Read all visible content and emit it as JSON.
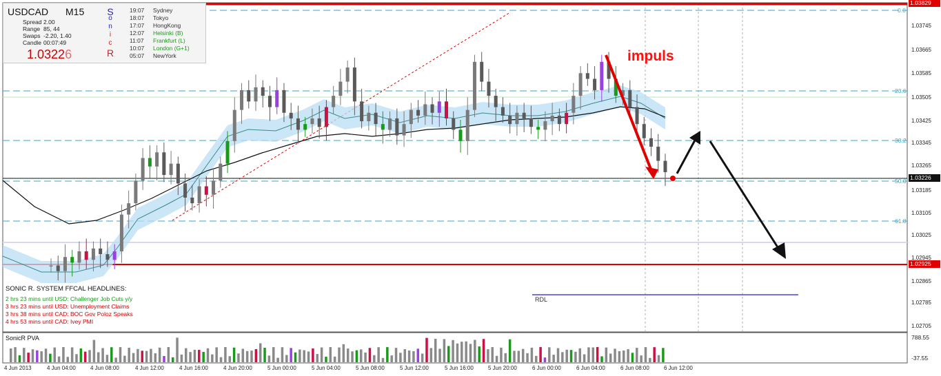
{
  "chart_window": {
    "symbol": "USDCAD",
    "timeframe": "M15",
    "sonicr_letters": [
      "S",
      "o",
      "n",
      "i",
      "c",
      "R"
    ],
    "stats": [
      {
        "label": "Spread",
        "value": "2.00"
      },
      {
        "label": "Range",
        "value": "85, 44"
      },
      {
        "label": "Swaps",
        "value": "-2.20, 1.40"
      },
      {
        "label": "Candle",
        "value": "00:07:49"
      }
    ],
    "price_main": "1.0322",
    "price_last_digit": "6",
    "sessions": [
      {
        "time": "19:07",
        "name": "Sydney",
        "color": "#333333"
      },
      {
        "time": "18:07",
        "name": "Tokyo",
        "color": "#333333"
      },
      {
        "time": "17:07",
        "name": "HongKong",
        "color": "#333333"
      },
      {
        "time": "12:07",
        "name": "Helsinki  (B)",
        "color": "#1a9a1a"
      },
      {
        "time": "11:07",
        "name": "Frankfurt  (L)",
        "color": "#1a9a1a"
      },
      {
        "time": "10:07",
        "name": "London  (G+1)",
        "color": "#1a9a1a"
      },
      {
        "time": "05:07",
        "name": "NewYork",
        "color": "#333333"
      }
    ]
  },
  "headlines": {
    "title": "SONIC R. SYSTEM   FFCAL HEADLINES:",
    "items": [
      {
        "text": "2 hrs 23 mins until USD: Challenger Job Cuts y/y",
        "color": "#1a9a1a"
      },
      {
        "text": "3 hrs 23 mins until USD: Unemployment Claims",
        "color": "#d00000"
      },
      {
        "text": "3 hrs 38 mins until CAD: BOC Gov Poloz Speaks",
        "color": "#d00000"
      },
      {
        "text": "4 hrs 53 mins until CAD: Ivey PMI",
        "color": "#d00000"
      }
    ]
  },
  "annotations": {
    "impuls": "impuls",
    "rdl": "RDL"
  },
  "price_axis": {
    "labels": [
      "1.03745",
      "1.03665",
      "1.03585",
      "1.03505",
      "1.03425",
      "1.03345",
      "1.03265",
      "1.03185",
      "1.03105",
      "1.03025",
      "1.02945",
      "1.02865",
      "1.02785",
      "1.02705"
    ],
    "top_tag": "1.03829",
    "current_tag": "1.03226",
    "red_tag": "1.02925"
  },
  "fib_levels": [
    "0.0",
    "23.6",
    "38.2",
    "50.0",
    "61.8"
  ],
  "indicator": {
    "name": "SonicR PVA",
    "max_label": "788.55",
    "min_label": "-37.55"
  },
  "time_axis": [
    "4 Jun 2013",
    "4 Jun 04:00",
    "4 Jun 08:00",
    "4 Jun 12:00",
    "4 Jun 16:00",
    "4 Jun 20:00",
    "5 Jun 00:00",
    "5 Jun 04:00",
    "5 Jun 08:00",
    "5 Jun 12:00",
    "5 Jun 16:00",
    "5 Jun 20:00",
    "6 Jun 00:00",
    "6 Jun 04:00",
    "6 Jun 08:00",
    "6 Jun 12:00"
  ],
  "colors": {
    "bull": "#1a9a1a",
    "bear": "#d00000",
    "neutral": "#808080",
    "climax": "#cc1144",
    "purple": "#9a3fe0",
    "fib": "#3aa6c8",
    "dragon": "#b9ddf4"
  },
  "chart_data": {
    "type": "candlestick",
    "ylim": [
      1.02665,
      1.03829
    ],
    "candles_close": [
      1.029,
      1.0288,
      1.0293,
      1.0291,
      1.0295,
      1.0292,
      1.0296,
      1.0294,
      1.0292,
      1.0295,
      1.0308,
      1.0312,
      1.032,
      1.0328,
      1.0325,
      1.033,
      1.0322,
      1.0326,
      1.0319,
      1.0314,
      1.0312,
      1.0318,
      1.0315,
      1.032,
      1.0326,
      1.0334,
      1.0345,
      1.0352,
      1.0348,
      1.0353,
      1.035,
      1.0346,
      1.0352,
      1.0344,
      1.0342,
      1.0338,
      1.034,
      1.0342,
      1.0339,
      1.0346,
      1.035,
      1.0355,
      1.036,
      1.0348,
      1.0341,
      1.0344,
      1.034,
      1.0338,
      1.0342,
      1.0336,
      1.034,
      1.0345,
      1.0343,
      1.0347,
      1.0344,
      1.0348,
      1.0342,
      1.0338,
      1.0334,
      1.0345,
      1.0362,
      1.0355,
      1.035,
      1.0346,
      1.0343,
      1.034,
      1.0344,
      1.0342,
      1.0339,
      1.0338,
      1.0341,
      1.0343,
      1.034,
      1.0344,
      1.035,
      1.0358,
      1.0356,
      1.0352,
      1.0362,
      1.0356,
      1.035,
      1.0352,
      1.0346,
      1.034,
      1.0335,
      1.0332,
      1.0327,
      1.0323
    ],
    "vertical_arrows": "impulse down then projected pullback and further decline"
  }
}
